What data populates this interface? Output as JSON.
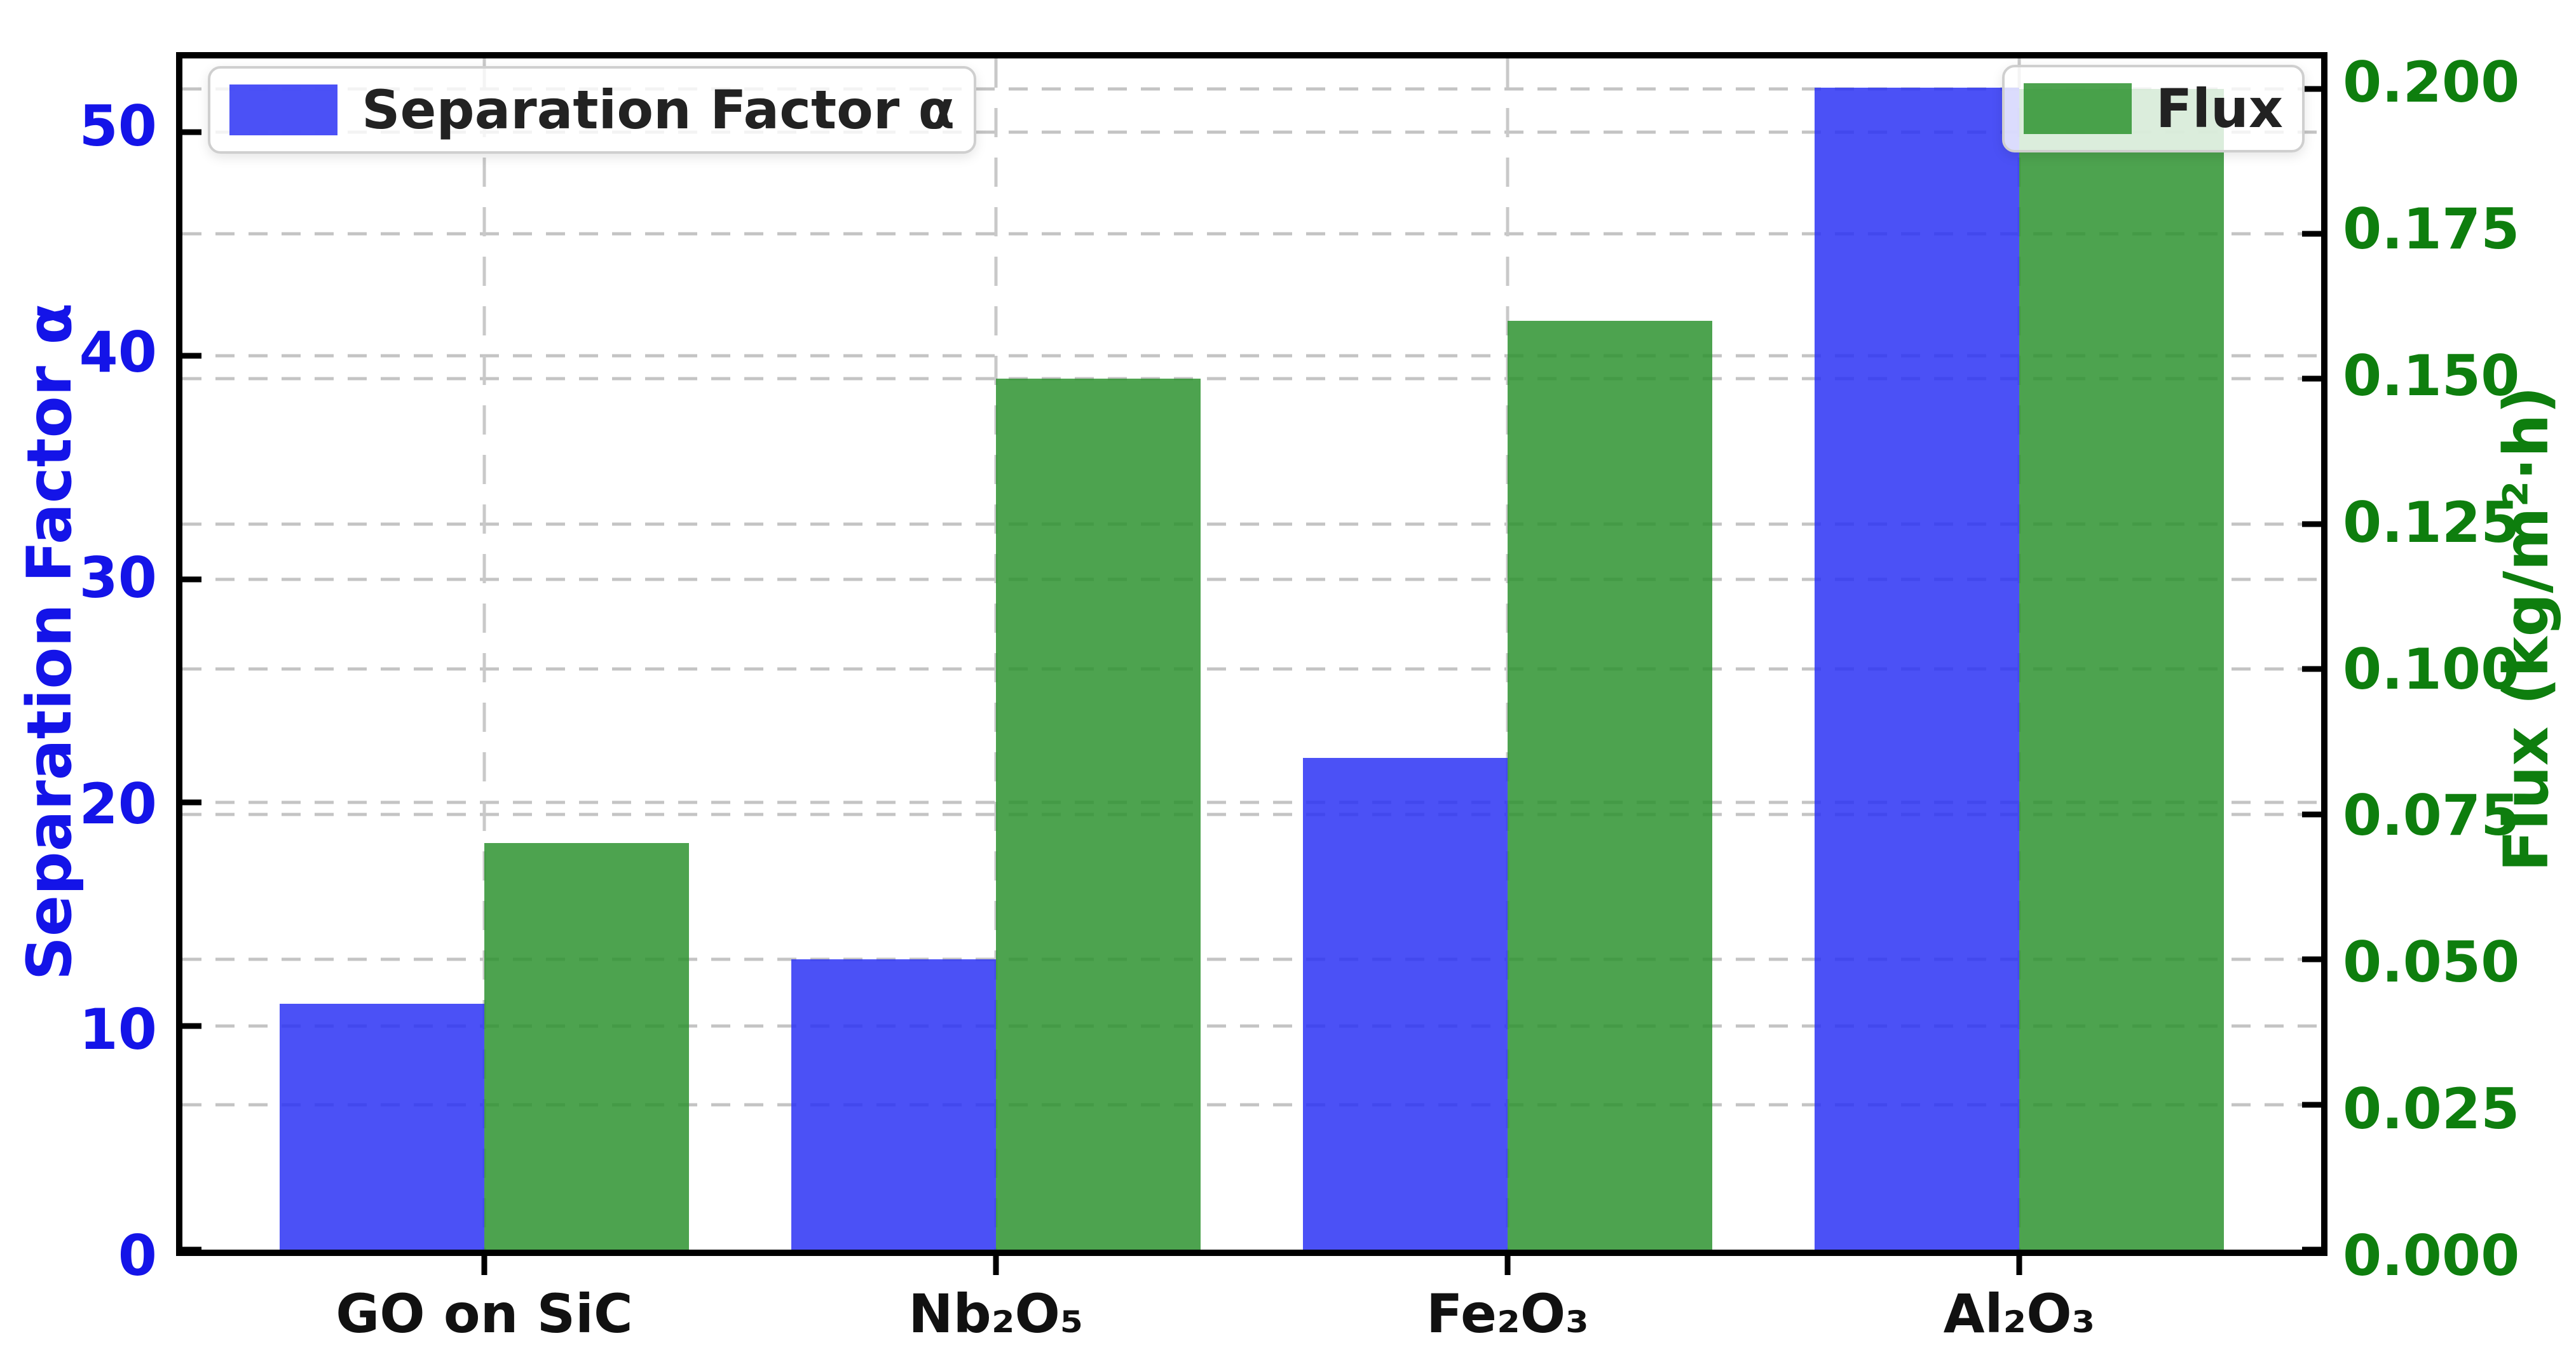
{
  "chart_data": {
    "type": "bar",
    "categories": [
      "GO on SiC",
      "Nb₂O₅",
      "Fe₂O₃",
      "Al₂O₃"
    ],
    "series": [
      {
        "name": "Separation Factor α",
        "axis": "left",
        "color": "#2B33F5",
        "values": [
          11,
          13,
          22,
          52
        ]
      },
      {
        "name": "Flux",
        "axis": "right",
        "color": "#2E9330",
        "values": [
          0.07,
          0.15,
          0.16,
          0.2
        ]
      }
    ],
    "left_axis": {
      "label": "Separation Factor α",
      "color": "#1414e8",
      "tick_values": [
        0,
        10,
        20,
        30,
        40,
        50
      ],
      "tick_labels": [
        "0",
        "10",
        "20",
        "30",
        "40",
        "50"
      ],
      "ylim": [
        0,
        53.3
      ]
    },
    "right_axis": {
      "label": "Flux (kg/m²·h)",
      "color": "#0e7e0e",
      "tick_values": [
        0,
        0.025,
        0.05,
        0.075,
        0.1,
        0.125,
        0.15,
        0.175,
        0.2
      ],
      "tick_labels": [
        "0.000",
        "0.025",
        "0.050",
        "0.075",
        "0.100",
        "0.125",
        "0.150",
        "0.175",
        "0.200"
      ],
      "ylim": [
        0,
        0.2052
      ]
    },
    "xlim": [
      -0.59,
      3.59
    ],
    "bar_width": 0.4,
    "grid": true,
    "legend_positions": [
      "upper left",
      "upper right"
    ]
  }
}
